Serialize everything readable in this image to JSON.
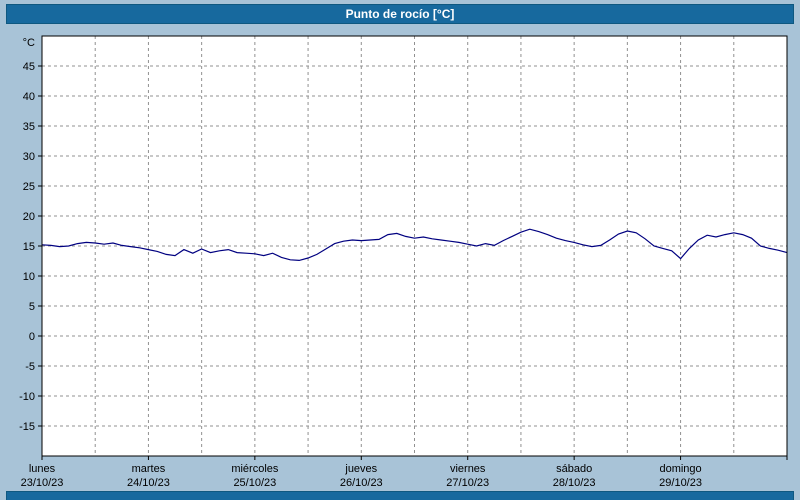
{
  "title_bar": {
    "text": "Punto de rocío [°C]"
  },
  "colors": {
    "background": "#a8c3d7",
    "title_bar_bg": "#17699e",
    "title_text": "#ffffff",
    "plot_bg": "#ffffff",
    "plot_border": "#000000",
    "grid": "#909090",
    "line": "#000080",
    "tick_text": "#000000"
  },
  "chart_data": {
    "type": "line",
    "title": "Punto de rocío [°C]",
    "ylabel": "°C",
    "ylim": [
      -20,
      50
    ],
    "yticks": [
      45,
      40,
      35,
      30,
      25,
      20,
      15,
      10,
      5,
      0,
      -5,
      -10,
      -15
    ],
    "x_total_hours": 168,
    "x_gridline_every_hours": 12,
    "grid": "dashed",
    "legend": false,
    "days": [
      {
        "name": "lunes",
        "date": "23/10/23"
      },
      {
        "name": "martes",
        "date": "24/10/23"
      },
      {
        "name": "miércoles",
        "date": "25/10/23"
      },
      {
        "name": "jueves",
        "date": "26/10/23"
      },
      {
        "name": "viernes",
        "date": "27/10/23"
      },
      {
        "name": "sábado",
        "date": "28/10/23"
      },
      {
        "name": "domingo",
        "date": "29/10/23"
      }
    ],
    "series": [
      {
        "name": "Punto de rocío",
        "interval_hours": 2,
        "values": [
          15.2,
          15.1,
          14.9,
          15.0,
          15.4,
          15.6,
          15.5,
          15.3,
          15.5,
          15.1,
          14.9,
          14.7,
          14.4,
          14.1,
          13.6,
          13.4,
          14.4,
          13.8,
          14.5,
          13.9,
          14.2,
          14.4,
          13.9,
          13.8,
          13.7,
          13.4,
          13.8,
          13.1,
          12.7,
          12.6,
          13.0,
          13.6,
          14.5,
          15.4,
          15.8,
          16.0,
          15.9,
          16.0,
          16.1,
          16.9,
          17.1,
          16.6,
          16.3,
          16.5,
          16.2,
          16.0,
          15.8,
          15.6,
          15.3,
          15.0,
          15.4,
          15.1,
          15.9,
          16.6,
          17.3,
          17.8,
          17.4,
          16.9,
          16.3,
          15.9,
          15.6,
          15.2,
          14.9,
          15.1,
          16.0,
          17.0,
          17.5,
          17.2,
          16.2,
          15.0,
          14.6,
          14.2,
          12.9,
          14.6,
          16.0,
          16.8,
          16.5,
          16.9,
          17.2,
          16.9,
          16.3,
          15.0,
          14.6,
          14.3,
          13.9
        ]
      }
    ]
  }
}
